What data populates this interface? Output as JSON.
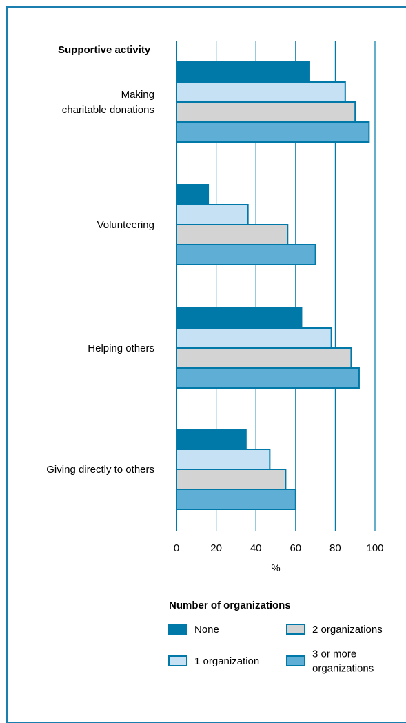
{
  "chart_data": {
    "type": "bar",
    "orientation": "horizontal",
    "category_axis_title": "Supportive activity",
    "xlabel": "%",
    "xlim": [
      0,
      100
    ],
    "xticks": [
      0,
      20,
      40,
      60,
      80,
      100
    ],
    "grid": true,
    "categories": [
      [
        "Making",
        "charitable donations"
      ],
      [
        "Volunteering"
      ],
      [
        "Helping others"
      ],
      [
        "Giving directly to others"
      ]
    ],
    "series": [
      {
        "name": "None",
        "color": "#0078a8",
        "values": [
          67,
          16,
          63,
          35
        ]
      },
      {
        "name": "1 organization",
        "color": "#c5e1f3",
        "values": [
          85,
          36,
          78,
          47
        ]
      },
      {
        "name": "2 organizations",
        "color": "#d3d3d3",
        "values": [
          90,
          56,
          88,
          55
        ]
      },
      {
        "name": "3 or more organizations",
        "color": "#5eaed6",
        "values": [
          97,
          70,
          92,
          60
        ]
      }
    ],
    "legend": {
      "title": "Number of organizations",
      "position": "bottom",
      "items": [
        {
          "lines": [
            "None"
          ],
          "series": 0
        },
        {
          "lines": [
            "2 organizations"
          ],
          "series": 2
        },
        {
          "lines": [
            "1 organization"
          ],
          "series": 1
        },
        {
          "lines": [
            "3 or more",
            "organizations"
          ],
          "series": 3
        }
      ]
    }
  },
  "colors": {
    "frame": "#1a7fae",
    "gridline": "#0078a8",
    "bar_stroke": "#0078a8"
  }
}
